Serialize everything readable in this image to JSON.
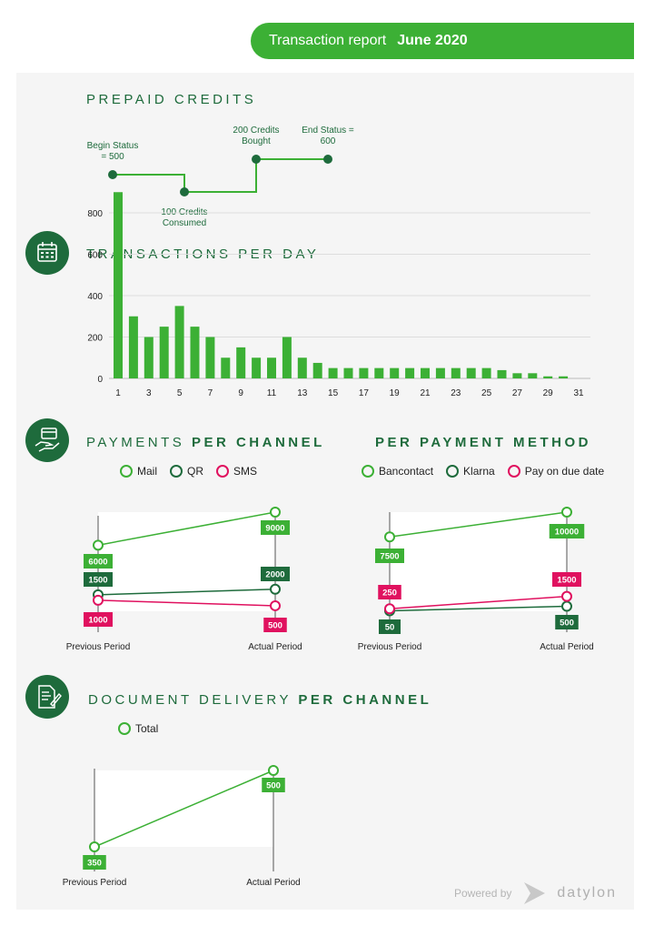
{
  "header": {
    "title": "Transaction report",
    "period": "June 2020"
  },
  "prepaid": {
    "title": "PREPAID CREDITS",
    "steps": [
      {
        "label_lines": [
          "Begin Status",
          "= 500"
        ]
      },
      {
        "label_lines": [
          "100 Credits",
          "Consumed"
        ]
      },
      {
        "label_lines": [
          "200 Credits",
          "Bought"
        ]
      },
      {
        "label_lines": [
          "End Status =",
          "600"
        ]
      }
    ]
  },
  "transactions": {
    "title": "TRANSACTIONS PER DAY"
  },
  "payments_channel": {
    "title_light": "PAYMENTS ",
    "title_bold": "PER CHANNEL",
    "legend": [
      "Mail",
      "QR",
      "SMS"
    ]
  },
  "payments_method": {
    "title_bold": "PER PAYMENT METHOD",
    "legend": [
      "Bancontact",
      "Klarna",
      "Pay on due date"
    ]
  },
  "document_delivery": {
    "title_light": "DOCUMENT DELIVERY ",
    "title_bold": "PER CHANNEL",
    "legend": [
      "Total"
    ]
  },
  "colors": {
    "green": "#3cb035",
    "dark_green": "#1e6b3c",
    "pink": "#e0115f"
  },
  "footer": {
    "powered_by": "Powered by",
    "brand": "datylon"
  },
  "chart_data": [
    {
      "type": "bar",
      "x": [
        1,
        2,
        3,
        4,
        5,
        6,
        7,
        8,
        9,
        10,
        11,
        12,
        13,
        14,
        15,
        16,
        17,
        18,
        19,
        20,
        21,
        22,
        23,
        24,
        25,
        26,
        27,
        28,
        29,
        30,
        31
      ],
      "values": [
        900,
        300,
        200,
        250,
        350,
        250,
        200,
        100,
        150,
        100,
        100,
        200,
        100,
        75,
        50,
        50,
        50,
        50,
        50,
        50,
        50,
        50,
        50,
        50,
        50,
        40,
        25,
        25,
        10,
        10,
        0
      ],
      "xticks": [
        1,
        3,
        5,
        7,
        9,
        11,
        13,
        15,
        17,
        19,
        21,
        23,
        25,
        27,
        29,
        31
      ],
      "yticks": [
        0,
        200,
        400,
        600,
        800
      ],
      "ylim": [
        0,
        900
      ],
      "grid": true
    },
    {
      "type": "line",
      "categories": [
        "Previous Period",
        "Actual Period"
      ],
      "series": [
        {
          "name": "Mail",
          "values": [
            6000,
            9000
          ]
        },
        {
          "name": "QR",
          "values": [
            1500,
            2000
          ]
        },
        {
          "name": "SMS",
          "values": [
            1000,
            500
          ]
        }
      ]
    },
    {
      "type": "line",
      "categories": [
        "Previous Period",
        "Actual Period"
      ],
      "series": [
        {
          "name": "Bancontact",
          "values": [
            7500,
            10000
          ]
        },
        {
          "name": "Klarna",
          "values": [
            50,
            500
          ]
        },
        {
          "name": "Pay on due date",
          "values": [
            250,
            1500
          ]
        }
      ]
    },
    {
      "type": "line",
      "categories": [
        "Previous Period",
        "Actual Period"
      ],
      "series": [
        {
          "name": "Total",
          "values": [
            350,
            500
          ]
        }
      ]
    }
  ]
}
